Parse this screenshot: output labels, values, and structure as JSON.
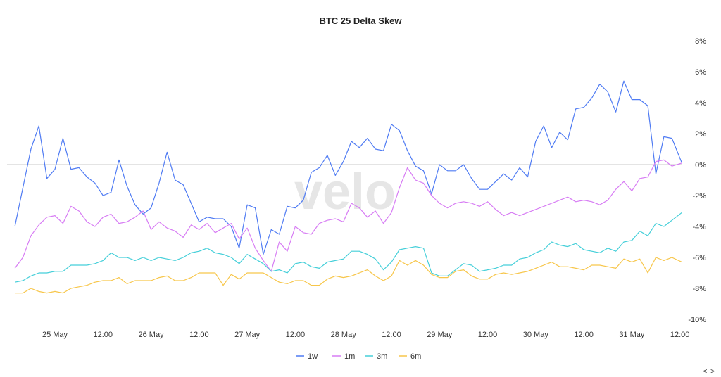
{
  "chart_data": {
    "type": "line",
    "title": "BTC 25 Delta Skew",
    "watermark": "velo",
    "xlabel": "",
    "ylabel": "",
    "x_unit": "hours since 25 May 00:00",
    "x_start": -10,
    "x_step": 2,
    "xlim": [
      -10,
      156.5
    ],
    "ylim": [
      -10,
      8
    ],
    "y_ticks": [
      8,
      6,
      4,
      2,
      0,
      -2,
      -4,
      -6,
      -8,
      -10
    ],
    "y_tick_labels": [
      "8%",
      "6%",
      "4%",
      "2%",
      "0%",
      "-2%",
      "-4%",
      "-6%",
      "-8%",
      "-10%"
    ],
    "x_ticks": [
      0,
      12,
      24,
      36,
      48,
      60,
      72,
      84,
      96,
      108,
      120,
      132,
      144,
      156
    ],
    "x_tick_labels": [
      "25 May",
      "12:00",
      "26 May",
      "12:00",
      "27 May",
      "12:00",
      "28 May",
      "12:00",
      "29 May",
      "12:00",
      "30 May",
      "12:00",
      "31 May",
      "12:00"
    ],
    "legend_position": "bottom-center",
    "grid": "zero line only",
    "series": [
      {
        "name": "1w",
        "color": "#4f7bf3",
        "values": [
          -4.0,
          -1.5,
          1.0,
          2.5,
          -0.9,
          -0.3,
          1.7,
          -0.3,
          -0.2,
          -0.8,
          -1.2,
          -2.0,
          -1.8,
          0.3,
          -1.4,
          -2.6,
          -3.2,
          -2.8,
          -1.2,
          0.8,
          -1.0,
          -1.3,
          -2.5,
          -3.7,
          -3.4,
          -3.5,
          -3.5,
          -4.0,
          -5.4,
          -2.6,
          -2.8,
          -5.8,
          -4.2,
          -4.5,
          -2.7,
          -2.8,
          -2.3,
          -0.5,
          -0.2,
          0.6,
          -0.7,
          0.2,
          1.5,
          1.1,
          1.7,
          1.0,
          0.9,
          2.6,
          2.2,
          0.9,
          -0.1,
          -0.4,
          -1.9,
          0.0,
          -0.4,
          -0.4,
          0.0,
          -0.9,
          -1.6,
          -1.6,
          -1.1,
          -0.6,
          -1.0,
          -0.2,
          -0.8,
          1.5,
          2.5,
          1.1,
          2.1,
          1.6,
          3.6,
          3.7,
          4.3,
          5.2,
          4.7,
          3.4,
          5.4,
          4.2,
          4.2,
          3.8,
          -0.6,
          1.8,
          1.7,
          0.1
        ]
      },
      {
        "name": "1m",
        "color": "#d77cf4",
        "values": [
          -6.7,
          -6.0,
          -4.6,
          -3.9,
          -3.4,
          -3.3,
          -3.8,
          -2.7,
          -3.0,
          -3.7,
          -4.0,
          -3.4,
          -3.2,
          -3.8,
          -3.7,
          -3.4,
          -3.0,
          -4.2,
          -3.7,
          -4.1,
          -4.3,
          -4.7,
          -3.9,
          -4.2,
          -3.8,
          -4.4,
          -4.1,
          -3.8,
          -4.8,
          -4.1,
          -5.4,
          -6.2,
          -6.9,
          -5.0,
          -5.6,
          -4.0,
          -4.4,
          -4.5,
          -3.8,
          -3.6,
          -3.5,
          -3.7,
          -2.5,
          -2.8,
          -3.4,
          -3.0,
          -3.8,
          -3.1,
          -1.5,
          -0.2,
          -1.0,
          -1.2,
          -2.0,
          -2.5,
          -2.8,
          -2.5,
          -2.4,
          -2.5,
          -2.7,
          -2.4,
          -2.9,
          -3.3,
          -3.1,
          -3.3,
          -3.1,
          -2.9,
          -2.7,
          -2.5,
          -2.3,
          -2.1,
          -2.4,
          -2.3,
          -2.4,
          -2.6,
          -2.3,
          -1.6,
          -1.1,
          -1.7,
          -0.9,
          -0.8,
          0.2,
          0.3,
          -0.1,
          0.1
        ]
      },
      {
        "name": "3m",
        "color": "#45cfd9",
        "values": [
          -7.6,
          -7.5,
          -7.2,
          -7.0,
          -7.0,
          -6.9,
          -6.9,
          -6.5,
          -6.5,
          -6.5,
          -6.4,
          -6.2,
          -5.7,
          -6.0,
          -6.0,
          -6.2,
          -6.0,
          -6.2,
          -6.0,
          -6.1,
          -6.2,
          -6.0,
          -5.7,
          -5.6,
          -5.4,
          -5.7,
          -5.8,
          -6.0,
          -6.4,
          -5.8,
          -6.1,
          -6.4,
          -6.9,
          -6.8,
          -7.0,
          -6.4,
          -6.3,
          -6.6,
          -6.7,
          -6.3,
          -6.2,
          -6.1,
          -5.6,
          -5.6,
          -5.8,
          -6.1,
          -6.8,
          -6.3,
          -5.5,
          -5.4,
          -5.3,
          -5.4,
          -7.0,
          -7.2,
          -7.2,
          -6.8,
          -6.4,
          -6.5,
          -6.9,
          -6.8,
          -6.7,
          -6.5,
          -6.5,
          -6.1,
          -6.0,
          -5.7,
          -5.5,
          -5.0,
          -5.2,
          -5.3,
          -5.1,
          -5.5,
          -5.6,
          -5.7,
          -5.4,
          -5.6,
          -5.0,
          -4.9,
          -4.3,
          -4.6,
          -3.8,
          -4.0,
          -3.6,
          -3.1
        ]
      },
      {
        "name": "6m",
        "color": "#f7c64a",
        "values": [
          -8.3,
          -8.3,
          -8.0,
          -8.2,
          -8.3,
          -8.2,
          -8.3,
          -8.0,
          -7.9,
          -7.8,
          -7.6,
          -7.5,
          -7.5,
          -7.3,
          -7.7,
          -7.5,
          -7.5,
          -7.5,
          -7.3,
          -7.2,
          -7.5,
          -7.5,
          -7.3,
          -7.0,
          -7.0,
          -7.0,
          -7.8,
          -7.1,
          -7.4,
          -7.0,
          -7.0,
          -7.0,
          -7.3,
          -7.6,
          -7.7,
          -7.5,
          -7.5,
          -7.8,
          -7.8,
          -7.4,
          -7.2,
          -7.3,
          -7.2,
          -7.0,
          -6.8,
          -7.2,
          -7.5,
          -7.2,
          -6.2,
          -6.5,
          -6.2,
          -6.5,
          -7.1,
          -7.3,
          -7.3,
          -6.9,
          -6.8,
          -7.2,
          -7.4,
          -7.4,
          -7.1,
          -7.0,
          -7.1,
          -7.0,
          -6.9,
          -6.7,
          -6.5,
          -6.3,
          -6.6,
          -6.6,
          -6.7,
          -6.8,
          -6.5,
          -6.5,
          -6.6,
          -6.7,
          -6.1,
          -6.3,
          -6.1,
          -7.0,
          -6.0,
          -6.2,
          -6.0,
          -6.3
        ]
      }
    ]
  },
  "nav": {
    "label": "< >"
  }
}
